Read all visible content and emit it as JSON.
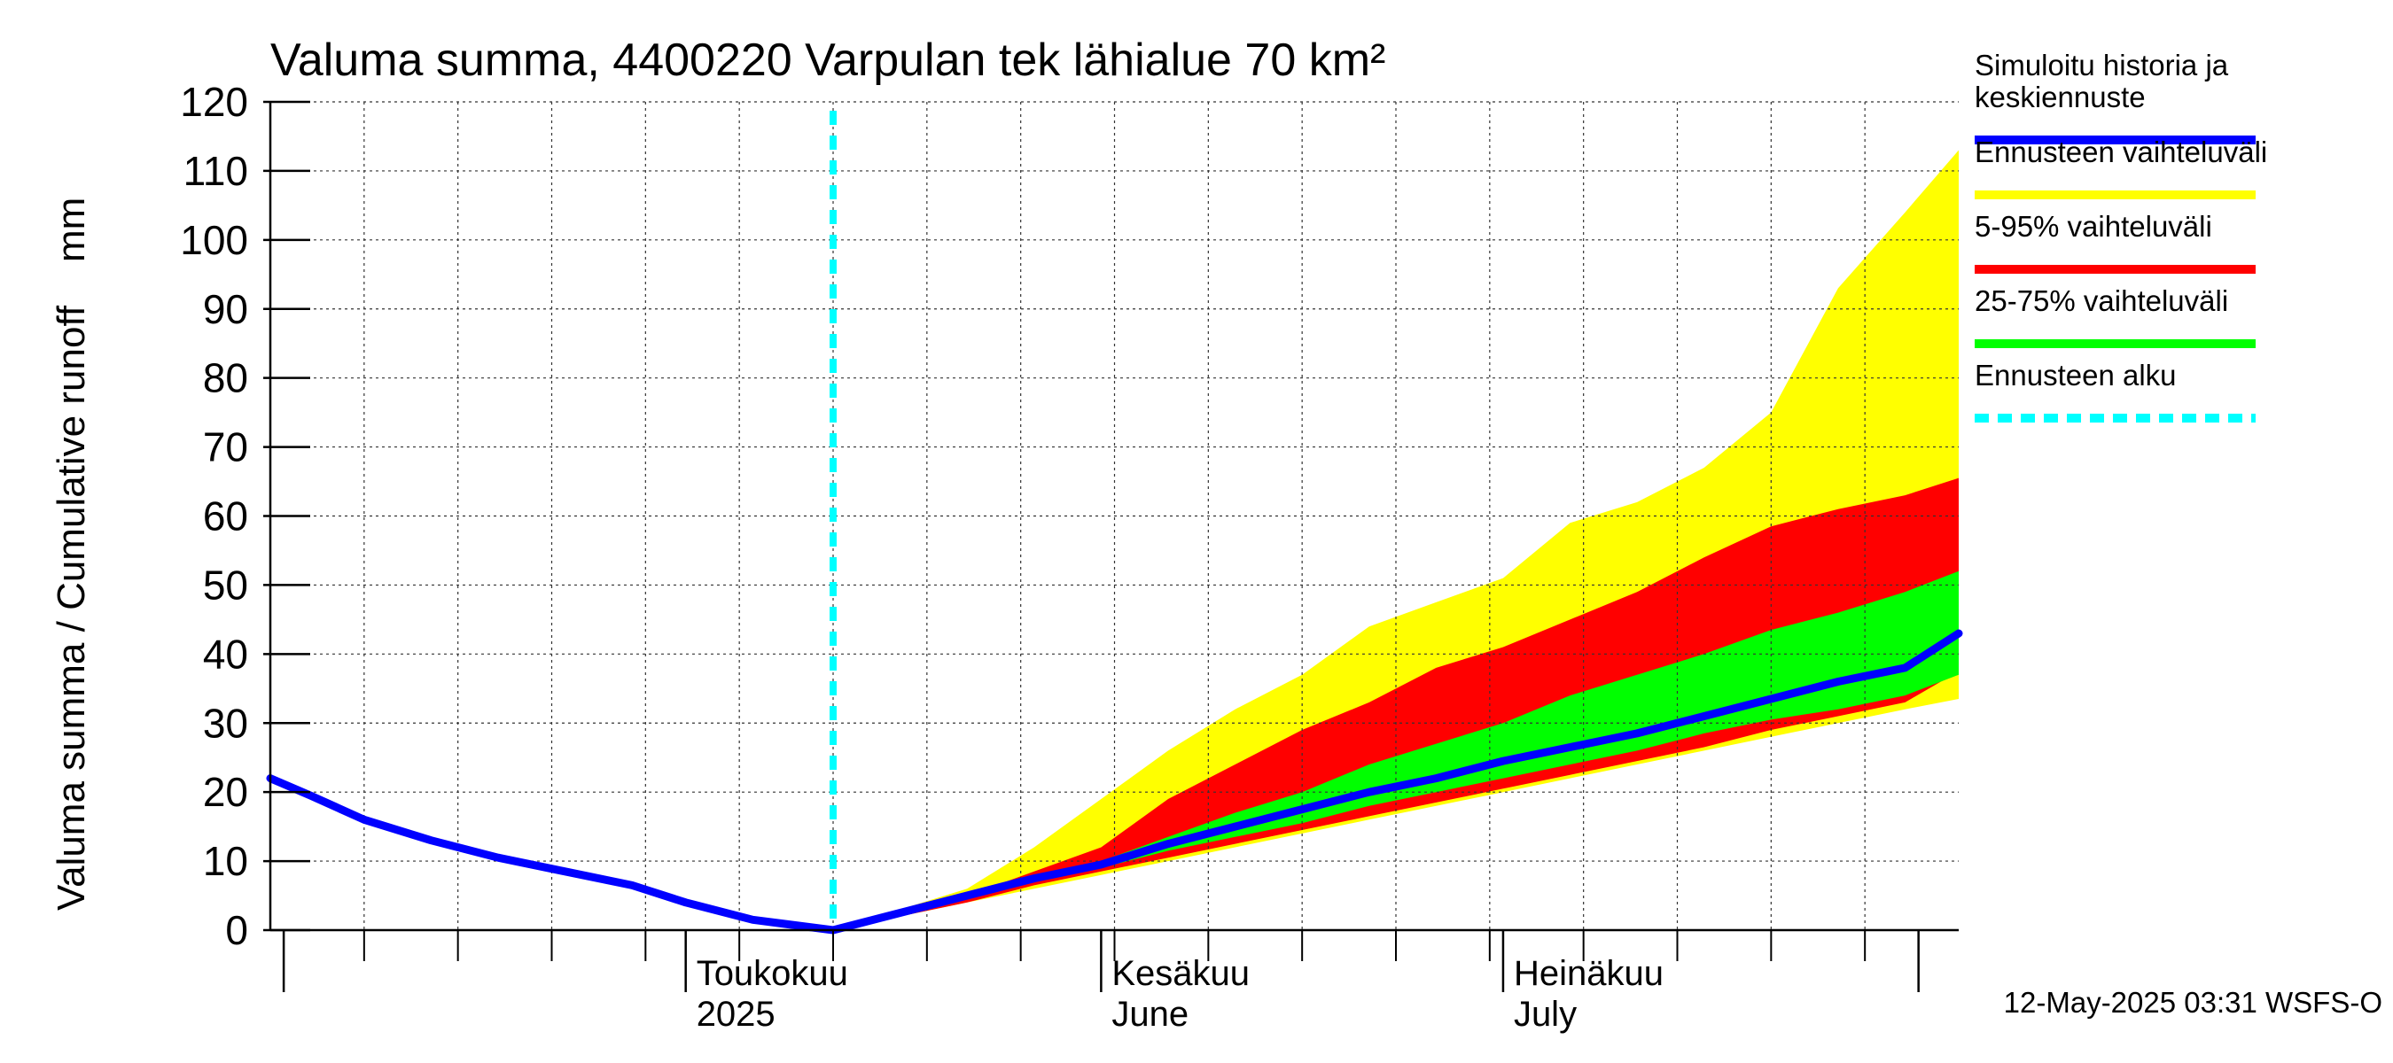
{
  "chart_data": {
    "type": "area",
    "title": "Valuma summa, 4400220 Varpulan tek lähialue 70 km²",
    "ylabel": "Valuma summa / Cumulative runoff    mm",
    "ylim": [
      0,
      120
    ],
    "yticks": [
      0,
      10,
      20,
      30,
      40,
      50,
      60,
      70,
      80,
      90,
      100,
      110,
      120
    ],
    "xlim": [
      "2025-03-31",
      "2025-08-04"
    ],
    "grid": true,
    "month_labels": [
      {
        "date": "2025-05-01",
        "line1": "Toukokuu",
        "line2": "2025"
      },
      {
        "date": "2025-06-01",
        "line1": "Kesäkuu",
        "line2": "June"
      },
      {
        "date": "2025-07-01",
        "line1": "Heinäkuu",
        "line2": "July"
      }
    ],
    "forecast_start": "2025-05-12",
    "x": [
      "2025-03-31",
      "2025-04-03",
      "2025-04-07",
      "2025-04-12",
      "2025-04-17",
      "2025-04-22",
      "2025-04-27",
      "2025-05-01",
      "2025-05-06",
      "2025-05-12",
      "2025-05-17",
      "2025-05-22",
      "2025-05-27",
      "2025-06-01",
      "2025-06-06",
      "2025-06-11",
      "2025-06-16",
      "2025-06-21",
      "2025-06-26",
      "2025-07-01",
      "2025-07-06",
      "2025-07-11",
      "2025-07-16",
      "2025-07-21",
      "2025-07-26",
      "2025-07-31",
      "2025-08-04"
    ],
    "series": [
      {
        "name": "Simuloitu historia ja keskiennuste",
        "color": "#0000ff",
        "values": [
          22,
          19.5,
          16,
          13,
          10.5,
          8.5,
          6.5,
          4,
          1.5,
          0,
          2.5,
          5,
          7.5,
          9.5,
          12.5,
          15,
          17.5,
          20,
          22,
          24.5,
          26.5,
          28.5,
          31,
          33.5,
          36,
          38,
          43
        ]
      },
      {
        "name": "Ennusteen vaihteluväli",
        "color": "#ffff00",
        "upper": [
          null,
          null,
          null,
          null,
          null,
          null,
          null,
          null,
          null,
          0,
          3,
          6,
          12,
          19,
          26,
          32,
          37,
          44,
          47.5,
          51,
          59,
          62,
          67,
          75,
          93,
          104,
          113
        ],
        "lower": [
          null,
          null,
          null,
          null,
          null,
          null,
          null,
          null,
          null,
          0,
          2,
          4,
          6,
          8,
          10,
          12,
          14,
          16,
          18,
          20,
          22,
          24,
          26,
          28,
          30,
          32,
          33.5
        ]
      },
      {
        "name": "5-95% vaihteluväli",
        "color": "#ff0000",
        "upper": [
          null,
          null,
          null,
          null,
          null,
          null,
          null,
          null,
          null,
          0,
          2.5,
          5,
          8.5,
          12,
          19,
          24,
          29,
          33,
          38,
          41,
          45,
          49,
          54,
          58.5,
          61,
          63,
          65.5
        ],
        "lower": [
          null,
          null,
          null,
          null,
          null,
          null,
          null,
          null,
          null,
          0,
          2,
          4,
          6.5,
          8.5,
          10.5,
          12.5,
          14.5,
          16.5,
          18.5,
          20.5,
          22.5,
          24.5,
          26.5,
          29,
          31,
          33,
          37.5
        ]
      },
      {
        "name": "25-75% vaihteluväli",
        "color": "#00ff00",
        "upper": [
          null,
          null,
          null,
          null,
          null,
          null,
          null,
          null,
          null,
          0,
          2.5,
          5,
          7.5,
          10,
          13.5,
          17,
          20,
          24,
          27,
          30,
          34,
          37,
          40,
          43.5,
          46,
          49,
          52
        ]
      },
      {
        "name": "25-75% vaihteluväli lower",
        "color": "#00ff00",
        "lower": [
          null,
          null,
          null,
          null,
          null,
          null,
          null,
          null,
          null,
          0,
          2,
          4.5,
          7,
          9,
          11.5,
          13.5,
          15.5,
          18,
          20,
          22,
          24,
          26,
          28.5,
          30.5,
          32,
          34,
          37
        ]
      },
      {
        "name": "Ennusteen alku",
        "color": "#00ffff",
        "date": "2025-05-12"
      }
    ],
    "legend_position": "right"
  },
  "legend": [
    {
      "label": "Simuloitu historia ja\nkeskiennuste",
      "color": "#0000ff",
      "style": "solid"
    },
    {
      "label": "Ennusteen vaihteluväli",
      "color": "#ffff00",
      "style": "solid"
    },
    {
      "label": "5-95% vaihteluväli",
      "color": "#ff0000",
      "style": "solid"
    },
    {
      "label": "25-75% vaihteluväli",
      "color": "#00ff00",
      "style": "solid"
    },
    {
      "label": "Ennusteen alku",
      "color": "#00ffff",
      "style": "dashed"
    }
  ],
  "footer": "12-May-2025 03:31 WSFS-O"
}
